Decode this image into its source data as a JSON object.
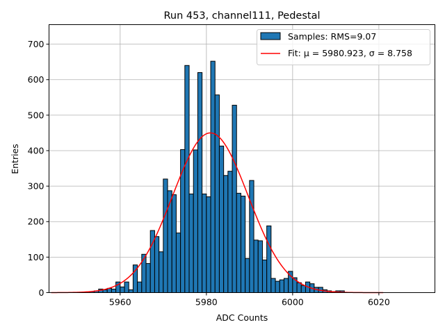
{
  "chart_data": {
    "type": "bar",
    "title": "Run 453, channel111, Pedestal",
    "xlabel": "ADC Counts",
    "ylabel": "Entries",
    "xlim": [
      5943.5,
      6033
    ],
    "ylim": [
      0,
      755
    ],
    "grid": true,
    "legend_position": "top-right",
    "x_ticks": [
      5960,
      5980,
      6000,
      6020
    ],
    "x_tick_labels": [
      "5960",
      "5980",
      "6000",
      "6020"
    ],
    "y_ticks": [
      0,
      100,
      200,
      300,
      400,
      500,
      600,
      700
    ],
    "y_tick_labels": [
      "0",
      "100",
      "200",
      "300",
      "400",
      "500",
      "600",
      "700"
    ],
    "histogram": {
      "bin_width": 1,
      "bin_starts": [
        5951,
        5952,
        5953,
        5954,
        5955,
        5956,
        5957,
        5958,
        5959,
        5960,
        5961,
        5962,
        5963,
        5964,
        5965,
        5966,
        5967,
        5968,
        5969,
        5970,
        5971,
        5972,
        5973,
        5974,
        5975,
        5976,
        5977,
        5978,
        5979,
        5980,
        5981,
        5982,
        5983,
        5984,
        5985,
        5986,
        5987,
        5988,
        5989,
        5990,
        5991,
        5992,
        5993,
        5994,
        5995,
        5996,
        5997,
        5998,
        5999,
        6000,
        6001,
        6002,
        6003,
        6004,
        6005,
        6006,
        6007,
        6008,
        6009,
        6010,
        6011,
        6012
      ],
      "counts": [
        1,
        1,
        3,
        5,
        10,
        8,
        12,
        10,
        30,
        16,
        30,
        8,
        78,
        30,
        108,
        82,
        175,
        158,
        115,
        320,
        287,
        276,
        168,
        403,
        640,
        278,
        402,
        620,
        278,
        270,
        652,
        557,
        413,
        330,
        342,
        528,
        280,
        272,
        96,
        316,
        148,
        146,
        92,
        188,
        40,
        32,
        36,
        40,
        60,
        42,
        28,
        20,
        30,
        25,
        15,
        15,
        8,
        5,
        3,
        5,
        5,
        1
      ]
    },
    "series": [
      {
        "name": "Samples: RMS=9.07",
        "kind": "histogram",
        "color": "#1f77b4",
        "edge_color": "#000000"
      },
      {
        "name": "Fit: μ = 5980.923, σ = 8.758",
        "kind": "line",
        "color": "#ff0000",
        "mu": 5980.923,
        "sigma": 8.758,
        "amplitude": 450,
        "x_range": [
          5944,
          6021
        ]
      }
    ]
  }
}
